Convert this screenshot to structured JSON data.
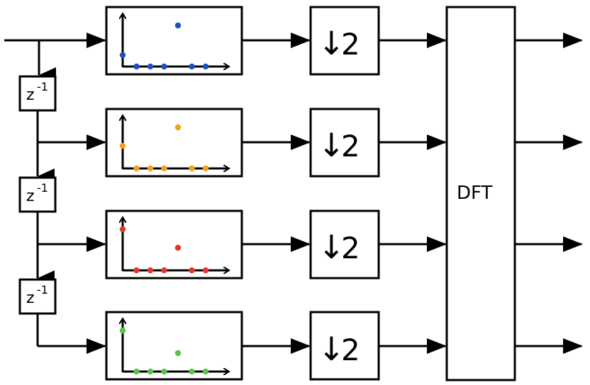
{
  "delay": {
    "base": "z",
    "exponent": "-1"
  },
  "downsampler": {
    "arrow_glyph": "↓",
    "factor": "2"
  },
  "dft": {
    "label": "DFT"
  },
  "branches": [
    {
      "color": "#1f4fbf",
      "impulse_response": [
        0.28,
        0.0,
        0.0,
        0.0,
        1.0,
        0.0,
        0.0
      ]
    },
    {
      "color": "#f2a319",
      "impulse_response": [
        0.55,
        0.0,
        0.0,
        0.0,
        1.0,
        0.0,
        0.0
      ]
    },
    {
      "color": "#e0382b",
      "impulse_response": [
        1.0,
        0.0,
        0.0,
        0.0,
        0.55,
        0.0,
        0.0
      ]
    },
    {
      "color": "#59c24a",
      "impulse_response": [
        1.0,
        0.0,
        0.0,
        0.0,
        0.45,
        0.0,
        0.0
      ]
    }
  ]
}
